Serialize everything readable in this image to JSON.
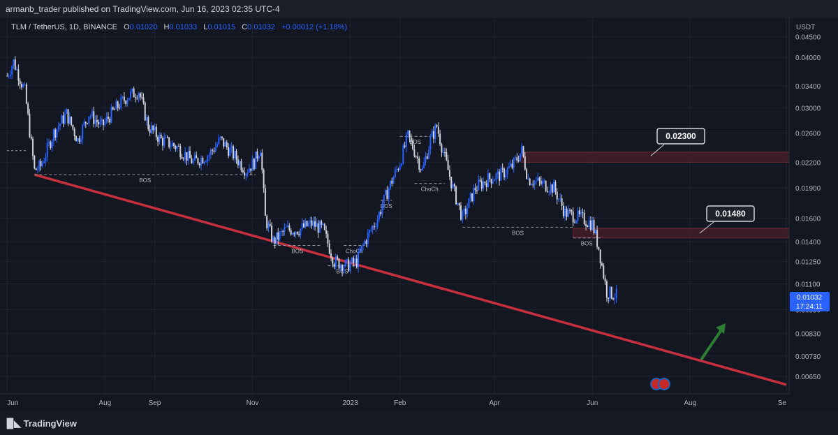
{
  "header": {
    "publisher_line": "armanb_trader published on TradingView.com, Jun 16, 2023 02:35 UTC-4"
  },
  "legend": {
    "symbol": "TLM / TetherUS, 1D, BINANCE",
    "open_label": "O",
    "open": "0.01020",
    "high_label": "H",
    "high": "0.01033",
    "low_label": "L",
    "low": "0.01015",
    "close_label": "C",
    "close": "0.01032",
    "change": "+0.00012 (+1.18%)"
  },
  "footer": {
    "brand": "TradingView"
  },
  "colors": {
    "up": "#2962ff",
    "down": "#d1d4dc",
    "trendline": "#c8303f",
    "zone": "#4a1f2a",
    "arrow": "#2e7d32"
  },
  "chart_data": {
    "type": "candlestick",
    "y_scale": "log",
    "y_unit": "USDT",
    "y_ticks": [
      "0.04500",
      "0.04000",
      "0.03400",
      "0.03000",
      "0.02600",
      "0.02200",
      "0.01900",
      "0.01600",
      "0.01400",
      "0.01250",
      "0.01100",
      "0.00950",
      "0.00830",
      "0.00730",
      "0.00650"
    ],
    "x_ticks": [
      "Jun",
      "Aug",
      "Sep",
      "Nov",
      "2023",
      "Feb",
      "Apr",
      "Jun",
      "Aug",
      "Se"
    ],
    "last_price": "0.01032",
    "countdown": "17:24:11",
    "path": [
      [
        "2022-06-01",
        0.036
      ],
      [
        "2022-06-05",
        0.039
      ],
      [
        "2022-06-12",
        0.033
      ],
      [
        "2022-06-18",
        0.021
      ],
      [
        "2022-06-22",
        0.0215
      ],
      [
        "2022-06-30",
        0.026
      ],
      [
        "2022-07-08",
        0.029
      ],
      [
        "2022-07-15",
        0.025
      ],
      [
        "2022-07-22",
        0.029
      ],
      [
        "2022-07-30",
        0.027
      ],
      [
        "2022-08-08",
        0.03
      ],
      [
        "2022-08-15",
        0.032
      ],
      [
        "2022-08-22",
        0.033
      ],
      [
        "2022-08-28",
        0.027
      ],
      [
        "2022-09-05",
        0.025
      ],
      [
        "2022-09-15",
        0.024
      ],
      [
        "2022-09-25",
        0.022
      ],
      [
        "2022-10-05",
        0.023
      ],
      [
        "2022-10-12",
        0.025
      ],
      [
        "2022-10-20",
        0.023
      ],
      [
        "2022-10-28",
        0.021
      ],
      [
        "2022-11-02",
        0.022
      ],
      [
        "2022-11-06",
        0.024
      ],
      [
        "2022-11-09",
        0.016
      ],
      [
        "2022-11-14",
        0.014
      ],
      [
        "2022-11-22",
        0.015
      ],
      [
        "2022-11-30",
        0.015
      ],
      [
        "2022-12-08",
        0.0155
      ],
      [
        "2022-12-15",
        0.015
      ],
      [
        "2022-12-22",
        0.0125
      ],
      [
        "2022-12-30",
        0.0122
      ],
      [
        "2023-01-05",
        0.0125
      ],
      [
        "2023-01-10",
        0.014
      ],
      [
        "2023-01-18",
        0.016
      ],
      [
        "2023-01-25",
        0.019
      ],
      [
        "2023-02-01",
        0.022
      ],
      [
        "2023-02-06",
        0.0255
      ],
      [
        "2023-02-10",
        0.0235
      ],
      [
        "2023-02-15",
        0.021
      ],
      [
        "2023-02-20",
        0.025
      ],
      [
        "2023-02-24",
        0.027
      ],
      [
        "2023-03-01",
        0.0225
      ],
      [
        "2023-03-06",
        0.019
      ],
      [
        "2023-03-12",
        0.016
      ],
      [
        "2023-03-20",
        0.019
      ],
      [
        "2023-03-28",
        0.02
      ],
      [
        "2023-04-05",
        0.0205
      ],
      [
        "2023-04-12",
        0.0215
      ],
      [
        "2023-04-18",
        0.0235
      ],
      [
        "2023-04-22",
        0.02
      ],
      [
        "2023-04-30",
        0.0195
      ],
      [
        "2023-05-08",
        0.019
      ],
      [
        "2023-05-15",
        0.0165
      ],
      [
        "2023-05-25",
        0.016
      ],
      [
        "2023-06-01",
        0.0155
      ],
      [
        "2023-06-05",
        0.0135
      ],
      [
        "2023-06-10",
        0.0105
      ],
      [
        "2023-06-16",
        0.0103
      ]
    ],
    "bos_levels": [
      {
        "label": "BOS",
        "price": 0.0205,
        "from": "2022-06-18",
        "to": "2022-11-03"
      },
      {
        "label": "BOS",
        "price": 0.0137,
        "from": "2022-11-14",
        "to": "2022-12-14"
      },
      {
        "label": "BOS",
        "price": 0.0122,
        "from": "2022-12-18",
        "to": "2023-01-05"
      },
      {
        "label": "ChoCh",
        "price": 0.0137,
        "from": "2022-12-28",
        "to": "2023-01-10"
      },
      {
        "label": "BOS",
        "price": 0.0255,
        "from": "2023-02-01",
        "to": "2023-02-20"
      },
      {
        "label": "ChoCh",
        "price": 0.0195,
        "from": "2023-02-10",
        "to": "2023-03-01"
      },
      {
        "label": "BOS",
        "price": 0.0177,
        "from": "2023-01-20",
        "to": "2023-01-27"
      },
      {
        "label": "BOS",
        "price": 0.0152,
        "from": "2023-03-12",
        "to": "2023-05-20"
      },
      {
        "label": "BOS",
        "price": 0.0143,
        "from": "2023-05-20",
        "to": "2023-06-06"
      }
    ],
    "zones": [
      {
        "label": "0.02300",
        "top": 0.0233,
        "bottom": 0.022,
        "from": "2023-04-18"
      },
      {
        "label": "0.01480",
        "top": 0.0151,
        "bottom": 0.0143,
        "from": "2023-05-20"
      }
    ],
    "trendline": [
      [
        "2022-06-18",
        0.0205
      ],
      [
        "2023-09-30",
        0.0062
      ]
    ]
  }
}
